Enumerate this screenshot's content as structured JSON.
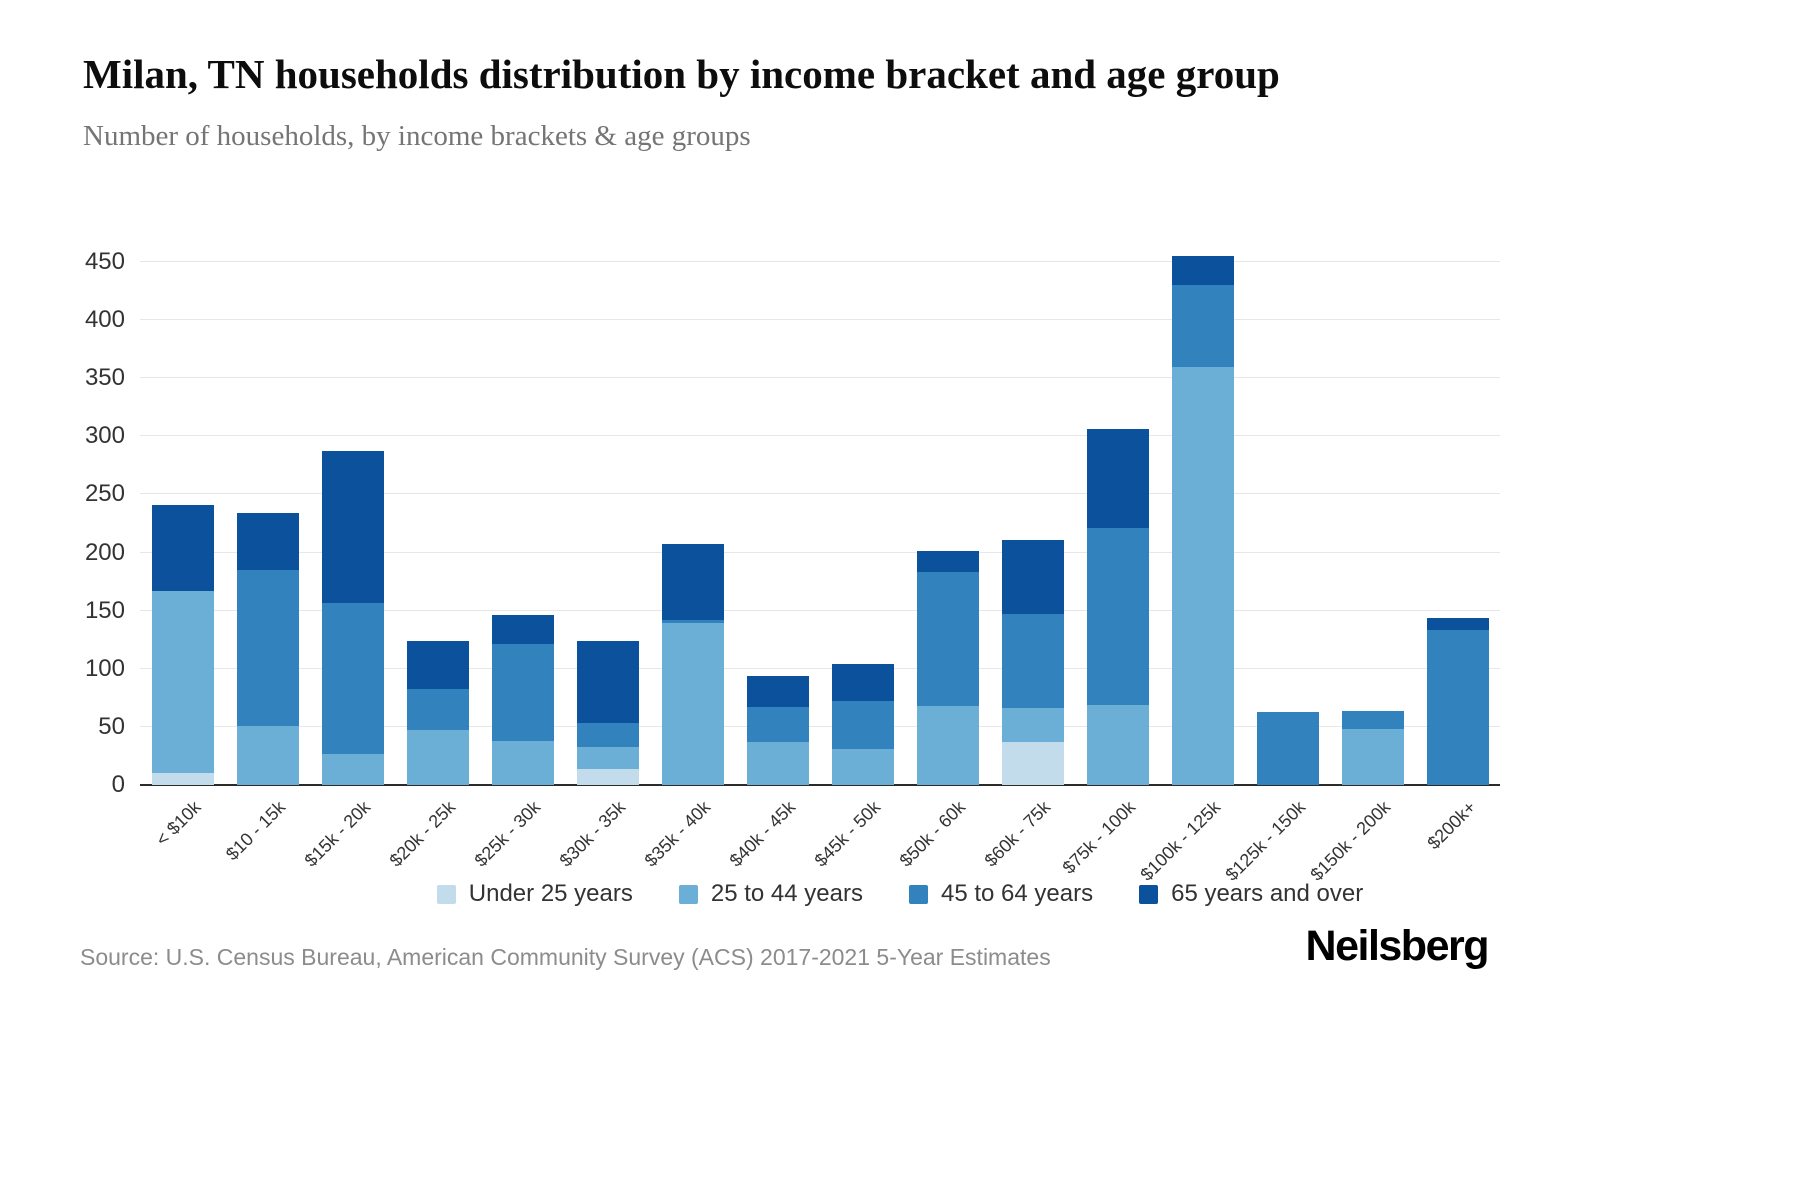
{
  "title": "Milan, TN households distribution by income bracket and age group",
  "subtitle": "Number of households, by income brackets & age groups",
  "source": "Source: U.S. Census Bureau, American Community Survey (ACS) 2017-2021 5-Year Estimates",
  "brand": "Neilsberg",
  "chart_data": {
    "type": "bar",
    "stacked": true,
    "title": "Milan, TN households distribution by income bracket and age group",
    "subtitle": "Number of households, by income brackets & age groups",
    "xlabel": "",
    "ylabel": "",
    "ylim": [
      0,
      450
    ],
    "yticks": [
      0,
      50,
      100,
      150,
      200,
      250,
      300,
      350,
      400,
      450
    ],
    "grid": true,
    "legend_position": "bottom",
    "categories": [
      "< $10k",
      "$10 - 15k",
      "$15k - 20k",
      "$20k - 25k",
      "$25k - 30k",
      "$30k - 35k",
      "$35k - 40k",
      "$40k - 45k",
      "$45k - 50k",
      "$50k - 60k",
      "$60k - 75k",
      "$75k - 100k",
      "$100k - 125k",
      "$125k - 150k",
      "$150k - 200k",
      "$200k+"
    ],
    "series": [
      {
        "name": "Under 25 years",
        "color": "#c2dcec",
        "values": [
          10,
          0,
          0,
          0,
          0,
          14,
          0,
          0,
          0,
          0,
          37,
          0,
          0,
          0,
          0,
          0
        ]
      },
      {
        "name": "25 to 44 years",
        "color": "#6baed6",
        "values": [
          157,
          51,
          27,
          47,
          38,
          19,
          139,
          37,
          31,
          68,
          29,
          69,
          360,
          0,
          48,
          0
        ]
      },
      {
        "name": "45 to 64 years",
        "color": "#3182bd",
        "values": [
          0,
          134,
          130,
          36,
          83,
          20,
          3,
          30,
          41,
          115,
          81,
          152,
          70,
          63,
          16,
          133
        ]
      },
      {
        "name": "65 years and over",
        "color": "#0b519c",
        "values": [
          74,
          49,
          130,
          41,
          25,
          71,
          65,
          27,
          32,
          18,
          64,
          85,
          25,
          0,
          0,
          11
        ]
      }
    ]
  }
}
